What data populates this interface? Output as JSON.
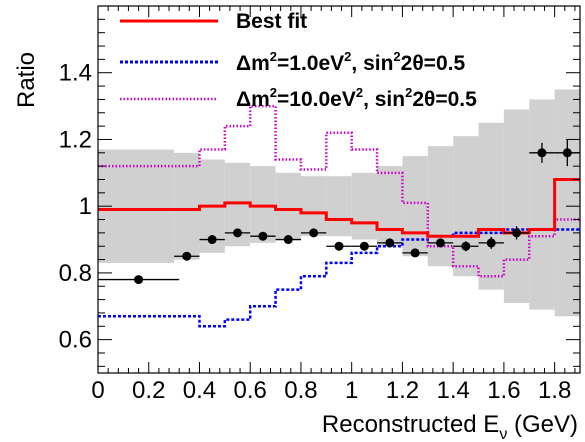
{
  "chart_data": {
    "type": "line",
    "xlabel": "Reconstructed E",
    "xlabel_sub": "ν",
    "xlabel_unit": " (GeV)",
    "ylabel": "Ratio",
    "xlim": [
      0,
      1.9
    ],
    "ylim": [
      0.5,
      1.6
    ],
    "grid": false,
    "legend_position": "top",
    "x_ticks": [
      {
        "value": 0,
        "label": "0"
      },
      {
        "value": 0.2,
        "label": "0.2"
      },
      {
        "value": 0.4,
        "label": "0.4"
      },
      {
        "value": 0.6,
        "label": "0.6"
      },
      {
        "value": 0.8,
        "label": "0.8"
      },
      {
        "value": 1.0,
        "label": "1"
      },
      {
        "value": 1.2,
        "label": "1.2"
      },
      {
        "value": 1.4,
        "label": "1.4"
      },
      {
        "value": 1.6,
        "label": "1.6"
      },
      {
        "value": 1.8,
        "label": "1.8"
      }
    ],
    "y_ticks": [
      {
        "value": 0.6,
        "label": "0.6"
      },
      {
        "value": 0.8,
        "label": "0.8"
      },
      {
        "value": 1.0,
        "label": "1"
      },
      {
        "value": 1.2,
        "label": "1.2"
      },
      {
        "value": 1.4,
        "label": "1.4"
      }
    ],
    "bin_edges": [
      0,
      0.3,
      0.4,
      0.5,
      0.6,
      0.7,
      0.8,
      0.9,
      1.0,
      1.1,
      1.2,
      1.3,
      1.4,
      1.5,
      1.6,
      1.7,
      1.8,
      1.9
    ],
    "error_band": {
      "low": [
        0.83,
        0.84,
        0.86,
        0.88,
        0.89,
        0.9,
        0.91,
        0.91,
        0.9,
        0.88,
        0.85,
        0.82,
        0.79,
        0.75,
        0.71,
        0.69,
        0.67
      ],
      "high": [
        1.17,
        1.16,
        1.14,
        1.13,
        1.12,
        1.1,
        1.09,
        1.09,
        1.1,
        1.12,
        1.15,
        1.18,
        1.21,
        1.25,
        1.29,
        1.32,
        1.35
      ]
    },
    "series": [
      {
        "name": "Best fit",
        "style": "solid",
        "color": "#ff0000",
        "values": [
          0.99,
          0.99,
          1.0,
          1.01,
          1.0,
          0.99,
          0.98,
          0.96,
          0.95,
          0.93,
          0.92,
          0.91,
          0.91,
          0.93,
          0.92,
          0.93,
          1.08
        ]
      },
      {
        "name": "Δm²=1.0eV², sin²2θ=0.5",
        "legend_parts": {
          "prefix": "Δm",
          "sup1": "2",
          "mid": "=1.0eV",
          "sup2": "2",
          "mid2": ", sin",
          "sup3": "2",
          "suffix": "2θ=0.5"
        },
        "style": "dashed",
        "color": "#0000ff",
        "values": [
          0.67,
          0.67,
          0.64,
          0.66,
          0.7,
          0.75,
          0.79,
          0.83,
          0.86,
          0.88,
          0.9,
          0.91,
          0.92,
          0.92,
          0.93,
          0.93,
          0.93
        ]
      },
      {
        "name": "Δm²=10.0eV², sin²2θ=0.5",
        "legend_parts": {
          "prefix": "Δm",
          "sup1": "2",
          "mid": "=10.0eV",
          "sup2": "2",
          "mid2": ", sin",
          "sup3": "2",
          "suffix": "2θ=0.5"
        },
        "style": "dotted",
        "color": "#cc00cc",
        "values": [
          1.12,
          1.12,
          1.17,
          1.24,
          1.3,
          1.14,
          1.11,
          1.22,
          1.17,
          1.1,
          1.01,
          0.88,
          0.82,
          0.79,
          0.84,
          0.91,
          0.96
        ]
      }
    ],
    "data_points": {
      "x": [
        0.16,
        0.35,
        0.45,
        0.55,
        0.65,
        0.75,
        0.85,
        0.95,
        1.05,
        1.15,
        1.25,
        1.35,
        1.45,
        1.55,
        1.65,
        1.75,
        1.85
      ],
      "y": [
        0.78,
        0.85,
        0.9,
        0.92,
        0.91,
        0.9,
        0.92,
        0.88,
        0.88,
        0.89,
        0.86,
        0.89,
        0.88,
        0.89,
        0.92,
        1.16,
        1.16
      ],
      "xerr": [
        0.16,
        0.05,
        0.05,
        0.05,
        0.05,
        0.05,
        0.05,
        0.05,
        0.05,
        0.05,
        0.05,
        0.05,
        0.05,
        0.05,
        0.05,
        0.05,
        0.05
      ],
      "yerr": [
        0.005,
        0.008,
        0.008,
        0.008,
        0.008,
        0.008,
        0.01,
        0.01,
        0.01,
        0.01,
        0.012,
        0.012,
        0.015,
        0.018,
        0.02,
        0.03,
        0.04
      ]
    }
  }
}
